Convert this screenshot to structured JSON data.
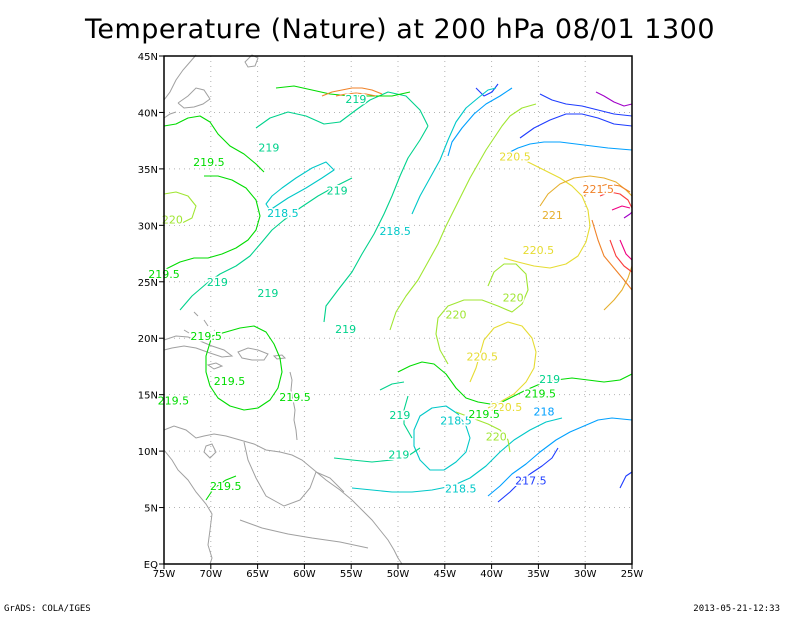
{
  "title": "Temperature (Nature) at 200 hPa 08/01 1300",
  "footer": {
    "credit": "GrADS: COLA/IGES",
    "timestamp": "2013-05-21-12:33"
  },
  "map": {
    "lon_range": [
      -75,
      -25
    ],
    "lat_range": [
      0,
      45
    ],
    "x_ticks": [
      {
        "lon": -75,
        "label": "75W"
      },
      {
        "lon": -70,
        "label": "70W"
      },
      {
        "lon": -65,
        "label": "65W"
      },
      {
        "lon": -60,
        "label": "60W"
      },
      {
        "lon": -55,
        "label": "55W"
      },
      {
        "lon": -50,
        "label": "50W"
      },
      {
        "lon": -45,
        "label": "45W"
      },
      {
        "lon": -40,
        "label": "40W"
      },
      {
        "lon": -35,
        "label": "35W"
      },
      {
        "lon": -30,
        "label": "30W"
      },
      {
        "lon": -25,
        "label": "25W"
      }
    ],
    "y_ticks": [
      {
        "lat": 0,
        "label": "EQ"
      },
      {
        "lat": 5,
        "label": "5N"
      },
      {
        "lat": 10,
        "label": "10N"
      },
      {
        "lat": 15,
        "label": "15N"
      },
      {
        "lat": 20,
        "label": "20N"
      },
      {
        "lat": 25,
        "label": "25N"
      },
      {
        "lat": 30,
        "label": "30N"
      },
      {
        "lat": 35,
        "label": "35N"
      },
      {
        "lat": 40,
        "label": "40N"
      },
      {
        "lat": 45,
        "label": "45N"
      }
    ],
    "grid": "dotted",
    "contour_colors": {
      "217.5": "#1e3cff",
      "218": "#00a0ff",
      "218.5": "#00c8c8",
      "219": "#00d28c",
      "219.5": "#00dc00",
      "220": "#a0e632",
      "220.5": "#e6dc32",
      "221": "#e6af2d",
      "221.5": "#f08228",
      "222": "#fa3c3c",
      "222.5": "#f00082",
      "223": "#a000c8"
    },
    "coastline_color": "#a0a0a0",
    "contour_labels": [
      {
        "text": "219",
        "lon": -54.5,
        "lat": 41.2,
        "level": "219"
      },
      {
        "text": "219",
        "lon": -63.8,
        "lat": 36.9,
        "level": "219"
      },
      {
        "text": "219.5",
        "lon": -70.2,
        "lat": 35.6,
        "level": "219.5"
      },
      {
        "text": "219",
        "lon": -56.5,
        "lat": 33.1,
        "level": "219"
      },
      {
        "text": "218.5",
        "lon": -62.3,
        "lat": 31.1,
        "level": "218.5"
      },
      {
        "text": "218.5",
        "lon": -50.3,
        "lat": 29.5,
        "level": "218.5"
      },
      {
        "text": "220",
        "lon": -74.1,
        "lat": 30.5,
        "level": "220"
      },
      {
        "text": "219.5",
        "lon": -75.0,
        "lat": 25.7,
        "level": "219.5"
      },
      {
        "text": "219",
        "lon": -69.3,
        "lat": 25.0,
        "level": "219"
      },
      {
        "text": "219",
        "lon": -63.9,
        "lat": 24.0,
        "level": "219"
      },
      {
        "text": "219",
        "lon": -55.6,
        "lat": 20.8,
        "level": "219"
      },
      {
        "text": "219.5",
        "lon": -70.5,
        "lat": 20.2,
        "level": "219.5"
      },
      {
        "text": "220.5",
        "lon": -37.5,
        "lat": 36.1,
        "level": "220.5"
      },
      {
        "text": "221.5",
        "lon": -28.6,
        "lat": 33.2,
        "level": "221.5"
      },
      {
        "text": "221",
        "lon": -33.5,
        "lat": 30.9,
        "level": "221"
      },
      {
        "text": "220.5",
        "lon": -35.0,
        "lat": 27.8,
        "level": "220.5"
      },
      {
        "text": "220",
        "lon": -37.7,
        "lat": 23.6,
        "level": "220"
      },
      {
        "text": "220",
        "lon": -43.8,
        "lat": 22.1,
        "level": "220"
      },
      {
        "text": "220.5",
        "lon": -41.0,
        "lat": 18.4,
        "level": "220.5"
      },
      {
        "text": "219.5",
        "lon": -68.0,
        "lat": 16.2,
        "level": "219.5"
      },
      {
        "text": "219.5",
        "lon": -61.0,
        "lat": 14.8,
        "level": "219.5"
      },
      {
        "text": "219.5",
        "lon": -74.0,
        "lat": 14.5,
        "level": "219.5"
      },
      {
        "text": "219",
        "lon": -33.8,
        "lat": 16.4,
        "level": "219"
      },
      {
        "text": "219.5",
        "lon": -34.8,
        "lat": 15.1,
        "level": "219.5"
      },
      {
        "text": "220.5",
        "lon": -38.4,
        "lat": 13.9,
        "level": "220.5"
      },
      {
        "text": "219",
        "lon": -49.8,
        "lat": 13.2,
        "level": "219"
      },
      {
        "text": "218.5",
        "lon": -43.8,
        "lat": 12.7,
        "level": "218.5"
      },
      {
        "text": "219.5",
        "lon": -40.8,
        "lat": 13.3,
        "level": "219.5"
      },
      {
        "text": "218",
        "lon": -34.4,
        "lat": 13.5,
        "level": "218"
      },
      {
        "text": "220",
        "lon": -39.5,
        "lat": 11.3,
        "level": "220"
      },
      {
        "text": "219",
        "lon": -49.9,
        "lat": 9.7,
        "level": "219"
      },
      {
        "text": "219.5",
        "lon": -68.4,
        "lat": 6.9,
        "level": "219.5"
      },
      {
        "text": "218.5",
        "lon": -43.3,
        "lat": 6.7,
        "level": "218.5"
      },
      {
        "text": "217.5",
        "lon": -35.8,
        "lat": 7.4,
        "level": "217.5"
      }
    ]
  }
}
